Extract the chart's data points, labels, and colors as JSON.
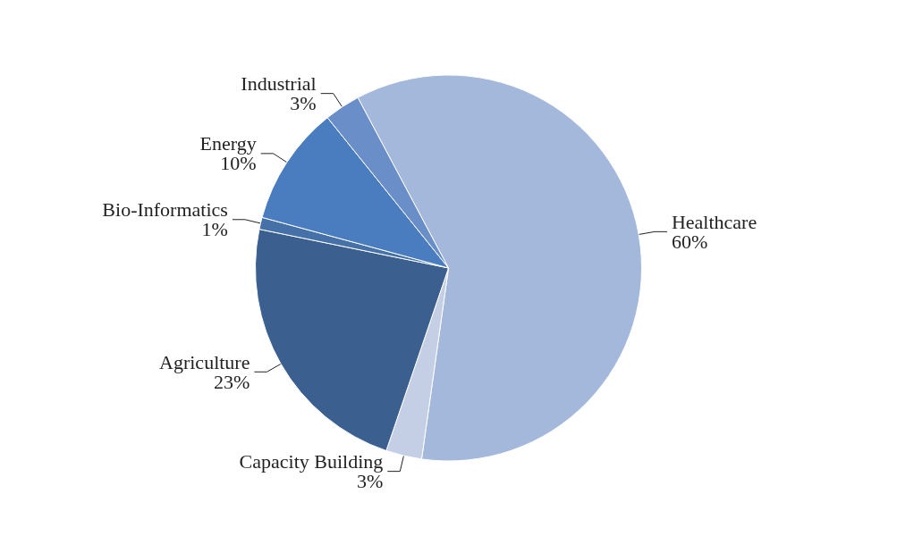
{
  "chart_data": {
    "type": "pie",
    "categories": [
      "Healthcare",
      "Capacity Building",
      "Agriculture",
      "Bio-Informatics",
      "Energy",
      "Industrial"
    ],
    "values": [
      60,
      3,
      23,
      1,
      10,
      3
    ],
    "value_labels": [
      "60%",
      "3%",
      "23%",
      "1%",
      "10%",
      "3%"
    ],
    "colors": [
      "#a3b8da",
      "#c4cfe6",
      "#3b5f8f",
      "#4570a8",
      "#4a7dbf",
      "#6a8ec8"
    ],
    "legend": false
  }
}
